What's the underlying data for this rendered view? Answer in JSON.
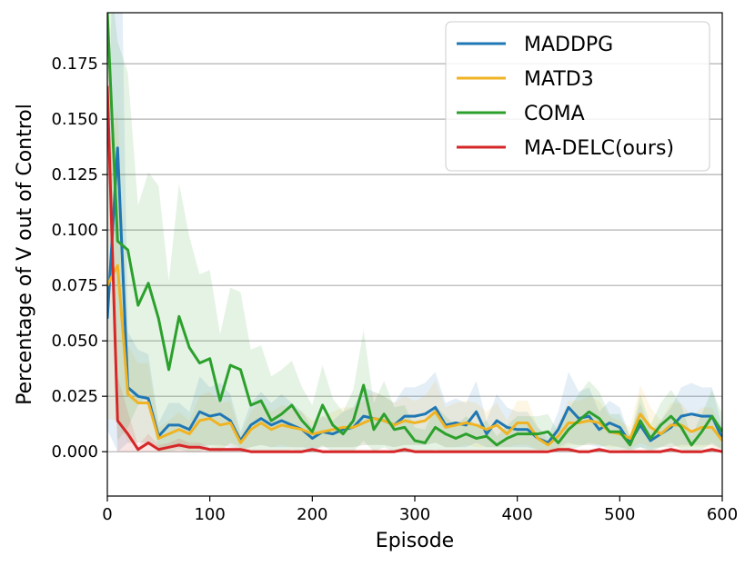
{
  "chart_data": {
    "type": "line",
    "title": "",
    "xlabel": "Episode",
    "ylabel": "Percentage of V out of Control",
    "xlim": [
      0,
      600
    ],
    "ylim": [
      -0.02,
      0.198
    ],
    "x_ticks": [
      0,
      100,
      200,
      300,
      400,
      500,
      600
    ],
    "y_ticks": [
      0.0,
      0.025,
      0.05,
      0.075,
      0.1,
      0.125,
      0.15,
      0.175
    ],
    "y_tick_labels": [
      "0.000",
      "0.025",
      "0.050",
      "0.075",
      "0.100",
      "0.125",
      "0.150",
      "0.175"
    ],
    "grid": "horizontal",
    "legend_position": "top-right",
    "x": [
      0,
      10,
      20,
      30,
      40,
      50,
      60,
      70,
      80,
      90,
      100,
      110,
      120,
      130,
      140,
      150,
      160,
      170,
      180,
      190,
      200,
      210,
      220,
      230,
      240,
      250,
      260,
      270,
      280,
      290,
      300,
      310,
      320,
      330,
      340,
      350,
      360,
      370,
      380,
      390,
      400,
      410,
      420,
      430,
      440,
      450,
      460,
      470,
      480,
      490,
      500,
      510,
      520,
      530,
      540,
      550,
      560,
      570,
      580,
      590,
      600
    ],
    "series": [
      {
        "name": "MADDPG",
        "color": "#1f77b4",
        "values": [
          0.06,
          0.137,
          0.029,
          0.025,
          0.024,
          0.007,
          0.012,
          0.012,
          0.01,
          0.018,
          0.016,
          0.017,
          0.014,
          0.005,
          0.012,
          0.015,
          0.012,
          0.014,
          0.012,
          0.01,
          0.006,
          0.009,
          0.008,
          0.01,
          0.011,
          0.016,
          0.015,
          0.014,
          0.012,
          0.016,
          0.016,
          0.017,
          0.02,
          0.012,
          0.013,
          0.012,
          0.018,
          0.008,
          0.014,
          0.011,
          0.01,
          0.01,
          0.006,
          0.004,
          0.01,
          0.02,
          0.015,
          0.016,
          0.01,
          0.013,
          0.011,
          0.004,
          0.012,
          0.005,
          0.008,
          0.011,
          0.016,
          0.017,
          0.016,
          0.016,
          0.006
        ],
        "band": [
          0.05,
          0.198,
          0.025,
          0.021,
          0.02,
          0.006,
          0.01,
          0.01,
          0.008,
          0.016,
          0.013,
          0.014,
          0.012,
          0.004,
          0.01,
          0.012,
          0.01,
          0.012,
          0.01,
          0.008,
          0.005,
          0.007,
          0.006,
          0.008,
          0.009,
          0.013,
          0.012,
          0.011,
          0.01,
          0.013,
          0.013,
          0.014,
          0.016,
          0.01,
          0.011,
          0.01,
          0.014,
          0.006,
          0.012,
          0.009,
          0.008,
          0.008,
          0.005,
          0.003,
          0.008,
          0.016,
          0.012,
          0.013,
          0.008,
          0.01,
          0.009,
          0.003,
          0.01,
          0.004,
          0.006,
          0.009,
          0.013,
          0.014,
          0.013,
          0.013,
          0.005
        ]
      },
      {
        "name": "MATD3",
        "color": "#f0b323",
        "values": [
          0.075,
          0.084,
          0.026,
          0.022,
          0.022,
          0.006,
          0.008,
          0.01,
          0.008,
          0.014,
          0.015,
          0.012,
          0.013,
          0.004,
          0.01,
          0.013,
          0.01,
          0.012,
          0.011,
          0.01,
          0.008,
          0.009,
          0.01,
          0.011,
          0.011,
          0.013,
          0.015,
          0.014,
          0.012,
          0.014,
          0.013,
          0.014,
          0.018,
          0.011,
          0.012,
          0.013,
          0.012,
          0.01,
          0.012,
          0.008,
          0.013,
          0.013,
          0.006,
          0.003,
          0.007,
          0.013,
          0.013,
          0.014,
          0.013,
          0.009,
          0.008,
          0.006,
          0.017,
          0.011,
          0.008,
          0.012,
          0.012,
          0.009,
          0.011,
          0.011,
          0.005
        ],
        "band": [
          0.06,
          0.07,
          0.022,
          0.018,
          0.018,
          0.005,
          0.006,
          0.008,
          0.006,
          0.011,
          0.012,
          0.01,
          0.01,
          0.003,
          0.008,
          0.01,
          0.008,
          0.009,
          0.009,
          0.008,
          0.006,
          0.007,
          0.008,
          0.009,
          0.009,
          0.01,
          0.012,
          0.011,
          0.01,
          0.011,
          0.01,
          0.011,
          0.014,
          0.009,
          0.01,
          0.01,
          0.01,
          0.008,
          0.01,
          0.006,
          0.01,
          0.01,
          0.005,
          0.002,
          0.006,
          0.01,
          0.01,
          0.011,
          0.01,
          0.007,
          0.006,
          0.005,
          0.013,
          0.009,
          0.006,
          0.01,
          0.01,
          0.007,
          0.009,
          0.009,
          0.004
        ]
      },
      {
        "name": "COMA",
        "color": "#2ca02c",
        "values": [
          0.198,
          0.095,
          0.091,
          0.066,
          0.076,
          0.06,
          0.037,
          0.061,
          0.047,
          0.04,
          0.042,
          0.023,
          0.039,
          0.037,
          0.021,
          0.023,
          0.014,
          0.017,
          0.021,
          0.014,
          0.009,
          0.021,
          0.012,
          0.008,
          0.014,
          0.03,
          0.01,
          0.017,
          0.01,
          0.011,
          0.005,
          0.004,
          0.011,
          0.008,
          0.006,
          0.008,
          0.006,
          0.007,
          0.003,
          0.006,
          0.008,
          0.008,
          0.008,
          0.009,
          0.004,
          0.01,
          0.014,
          0.018,
          0.015,
          0.009,
          0.009,
          0.003,
          0.014,
          0.006,
          0.012,
          0.016,
          0.011,
          0.003,
          0.009,
          0.016,
          0.009
        ],
        "band": [
          0.03,
          0.09,
          0.08,
          0.045,
          0.05,
          0.06,
          0.04,
          0.06,
          0.05,
          0.04,
          0.04,
          0.03,
          0.035,
          0.035,
          0.025,
          0.025,
          0.02,
          0.02,
          0.02,
          0.015,
          0.012,
          0.018,
          0.012,
          0.01,
          0.014,
          0.025,
          0.012,
          0.015,
          0.01,
          0.01,
          0.006,
          0.006,
          0.01,
          0.008,
          0.006,
          0.008,
          0.006,
          0.007,
          0.004,
          0.006,
          0.008,
          0.008,
          0.008,
          0.008,
          0.005,
          0.009,
          0.012,
          0.014,
          0.012,
          0.008,
          0.008,
          0.004,
          0.012,
          0.006,
          0.01,
          0.012,
          0.01,
          0.004,
          0.008,
          0.012,
          0.008
        ]
      },
      {
        "name": "MA-DELC(ours)",
        "color": "#d62728",
        "values": [
          0.165,
          0.014,
          0.008,
          0.001,
          0.004,
          0.001,
          0.002,
          0.003,
          0.002,
          0.002,
          0.001,
          0.001,
          0.001,
          0.001,
          0.0,
          0.0,
          0.0,
          0.0,
          0.0,
          0.0,
          0.001,
          0.0,
          0.0,
          0.0,
          0.0,
          0.0,
          0.0,
          0.0,
          0.0,
          0.001,
          0.0,
          0.0,
          0.0,
          0.0,
          0.0,
          0.0,
          0.0,
          0.0,
          0.0,
          0.0,
          0.0,
          0.0,
          0.0,
          0.0,
          0.001,
          0.001,
          0.0,
          0.0,
          0.001,
          0.0,
          0.0,
          0.0,
          0.0,
          0.0,
          0.0,
          0.001,
          0.0,
          0.0,
          0.0,
          0.001,
          0.0
        ],
        "band": [
          0.03,
          0.02,
          0.01,
          0.002,
          0.004,
          0.002,
          0.002,
          0.003,
          0.002,
          0.002,
          0.001,
          0.001,
          0.001,
          0.001,
          0.001,
          0.001,
          0.001,
          0.001,
          0.001,
          0.001,
          0.001,
          0.001,
          0.001,
          0.001,
          0.001,
          0.001,
          0.001,
          0.001,
          0.001,
          0.001,
          0.001,
          0.001,
          0.001,
          0.001,
          0.001,
          0.001,
          0.001,
          0.001,
          0.001,
          0.001,
          0.001,
          0.001,
          0.001,
          0.001,
          0.001,
          0.001,
          0.001,
          0.001,
          0.001,
          0.001,
          0.001,
          0.001,
          0.001,
          0.001,
          0.001,
          0.001,
          0.001,
          0.001,
          0.001,
          0.001,
          0.001
        ]
      }
    ]
  }
}
